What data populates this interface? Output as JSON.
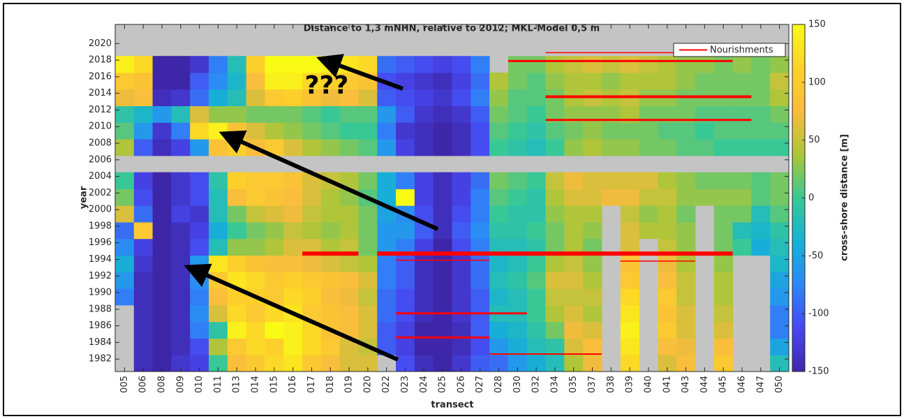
{
  "chart_data": {
    "type": "heatmap",
    "title": "Distance to 1,3 mNHN, relative to 2012; MKL-Model 0,5 m",
    "xlabel": "transect",
    "ylabel": "year",
    "colorbar_label": "cross-shore distance [m]",
    "annotation": "???",
    "categories": [
      "005",
      "006",
      "008",
      "009",
      "010",
      "011",
      "013",
      "014",
      "015",
      "016",
      "017",
      "018",
      "019",
      "020",
      "022",
      "023",
      "024",
      "025",
      "026",
      "027",
      "028",
      "030",
      "032",
      "034",
      "035",
      "037",
      "038",
      "039",
      "040",
      "041",
      "043",
      "044",
      "045",
      "046",
      "047",
      "050"
    ],
    "ybins": [
      1980.5,
      1982.5,
      1984.5,
      1986.5,
      1988.5,
      1990.5,
      1992.5,
      1994.5,
      1996.5,
      1998.5,
      2000.5,
      2002.5,
      2004.5,
      2006.5,
      2008.5,
      2010.5,
      2012.5,
      2014.5,
      2016.5,
      2018.5,
      2020.5
    ],
    "values": [
      [
        null,
        null,
        null,
        null,
        -80,
        -60,
        -40,
        -70,
        -90,
        60,
        20,
        0,
        null,
        40,
        10,
        -10,
        70,
        100,
        140,
        null
      ],
      [
        -140,
        -140,
        -140,
        -140,
        -140,
        -140,
        -130,
        -120,
        100,
        -90,
        -110,
        -120,
        null,
        -100,
        -60,
        -30,
        80,
        90,
        120,
        null
      ],
      [
        -150,
        -150,
        -150,
        -150,
        -150,
        -150,
        -150,
        -150,
        -150,
        -150,
        -150,
        -150,
        null,
        -140,
        -130,
        -60,
        -140,
        -150,
        -150,
        null
      ],
      [
        -130,
        -140,
        -140,
        -140,
        -140,
        -140,
        -140,
        -140,
        -140,
        -120,
        -130,
        -130,
        null,
        -120,
        -80,
        -20,
        -130,
        -150,
        -150,
        null
      ],
      [
        -120,
        -110,
        -80,
        -70,
        -80,
        -70,
        -60,
        -110,
        -120,
        -130,
        -110,
        -110,
        null,
        -60,
        120,
        60,
        -90,
        -100,
        -130,
        null
      ],
      [
        0,
        40,
        -10,
        60,
        80,
        100,
        130,
        -20,
        -40,
        -20,
        -20,
        -10,
        null,
        90,
        140,
        30,
        -40,
        -70,
        -80,
        null
      ],
      [
        80,
        100,
        140,
        120,
        110,
        130,
        110,
        30,
        0,
        20,
        80,
        110,
        null,
        110,
        90,
        30,
        -20,
        -30,
        -20,
        null
      ],
      [
        100,
        120,
        120,
        100,
        110,
        120,
        90,
        30,
        20,
        50,
        100,
        100,
        null,
        80,
        60,
        20,
        60,
        80,
        110,
        null
      ],
      [
        120,
        110,
        150,
        120,
        100,
        100,
        80,
        40,
        30,
        60,
        90,
        100,
        null,
        100,
        40,
        20,
        100,
        140,
        150,
        null
      ],
      [
        130,
        140,
        140,
        130,
        120,
        110,
        80,
        60,
        50,
        70,
        80,
        90,
        null,
        60,
        30,
        20,
        110,
        140,
        150,
        null
      ],
      [
        100,
        120,
        120,
        100,
        110,
        100,
        70,
        60,
        40,
        50,
        60,
        60,
        null,
        40,
        20,
        10,
        90,
        120,
        150,
        null
      ],
      [
        80,
        100,
        90,
        90,
        80,
        90,
        60,
        40,
        30,
        40,
        40,
        50,
        null,
        30,
        10,
        0,
        70,
        110,
        140,
        null
      ],
      [
        60,
        60,
        80,
        80,
        70,
        80,
        50,
        50,
        40,
        40,
        30,
        40,
        null,
        20,
        0,
        10,
        80,
        100,
        130,
        null
      ],
      [
        60,
        50,
        60,
        60,
        50,
        60,
        40,
        20,
        20,
        20,
        10,
        20,
        null,
        10,
        0,
        10,
        60,
        90,
        120,
        null
      ],
      [
        null,
        -100,
        -100,
        -90,
        -90,
        -80,
        -80,
        -60,
        -60,
        -50,
        -40,
        -40,
        null,
        -60,
        -80,
        -60,
        -100,
        -110,
        -90,
        null
      ],
      [
        -110,
        -120,
        -120,
        -110,
        -110,
        -100,
        -100,
        -80,
        -60,
        -70,
        150,
        -80,
        null,
        -120,
        -130,
        -100,
        -110,
        -120,
        -100,
        null
      ],
      [
        -140,
        -150,
        -150,
        -140,
        -140,
        -140,
        -140,
        -120,
        -100,
        -110,
        -120,
        -120,
        null,
        -140,
        -140,
        -130,
        -120,
        -130,
        -110,
        null
      ],
      [
        -150,
        -150,
        -150,
        -150,
        -150,
        -150,
        -150,
        -150,
        -140,
        -140,
        -140,
        -140,
        null,
        -150,
        -150,
        -140,
        -130,
        -140,
        -120,
        null
      ],
      [
        -130,
        -140,
        -140,
        -130,
        -130,
        -130,
        -130,
        -110,
        -100,
        -110,
        -120,
        -120,
        null,
        -140,
        -140,
        -130,
        -110,
        -120,
        -110,
        null
      ],
      [
        -100,
        -110,
        -100,
        -100,
        -100,
        -90,
        -90,
        -80,
        -70,
        -80,
        -80,
        -90,
        null,
        -110,
        -110,
        -100,
        -80,
        -90,
        -80,
        null
      ],
      [
        -90,
        -60,
        -40,
        -20,
        -30,
        -20,
        -30,
        -20,
        -10,
        0,
        10,
        20,
        null,
        0,
        10,
        20,
        30,
        40,
        null,
        null
      ],
      [
        -60,
        -40,
        -30,
        -20,
        -20,
        -10,
        -20,
        -20,
        -10,
        -10,
        0,
        10,
        null,
        -10,
        0,
        10,
        10,
        20,
        20,
        null
      ],
      [
        -40,
        -20,
        -10,
        0,
        0,
        10,
        0,
        -10,
        0,
        -10,
        -10,
        0,
        null,
        -20,
        -10,
        0,
        10,
        10,
        20,
        null
      ],
      [
        -20,
        -10,
        20,
        40,
        50,
        60,
        40,
        20,
        20,
        30,
        40,
        50,
        null,
        0,
        10,
        20,
        20,
        30,
        40,
        null
      ],
      [
        40,
        60,
        70,
        60,
        50,
        60,
        50,
        40,
        40,
        40,
        60,
        70,
        null,
        30,
        20,
        30,
        40,
        40,
        50,
        null
      ],
      [
        70,
        80,
        60,
        40,
        50,
        40,
        30,
        20,
        30,
        40,
        60,
        60,
        null,
        40,
        30,
        30,
        50,
        40,
        60,
        null
      ],
      [
        null,
        null,
        null,
        null,
        null,
        null,
        null,
        null,
        null,
        null,
        70,
        60,
        null,
        30,
        20,
        30,
        40,
        30,
        50,
        null
      ],
      [
        120,
        130,
        140,
        130,
        120,
        100,
        90,
        60,
        60,
        50,
        70,
        60,
        null,
        30,
        20,
        40,
        50,
        40,
        60,
        null
      ],
      [
        null,
        null,
        null,
        null,
        null,
        null,
        null,
        null,
        40,
        30,
        50,
        60,
        null,
        20,
        20,
        20,
        30,
        40,
        50,
        null
      ],
      [
        60,
        80,
        100,
        90,
        100,
        80,
        70,
        50,
        40,
        40,
        50,
        40,
        null,
        20,
        10,
        20,
        30,
        40,
        40,
        null
      ],
      [
        80,
        70,
        60,
        60,
        50,
        50,
        40,
        30,
        30,
        20,
        30,
        30,
        null,
        10,
        10,
        20,
        20,
        30,
        30,
        null
      ],
      [
        null,
        null,
        null,
        null,
        null,
        null,
        null,
        null,
        null,
        null,
        30,
        20,
        null,
        10,
        0,
        10,
        20,
        20,
        30,
        null
      ],
      [
        100,
        80,
        60,
        50,
        40,
        40,
        30,
        20,
        20,
        20,
        30,
        20,
        null,
        0,
        10,
        10,
        20,
        20,
        20,
        null
      ],
      [
        null,
        null,
        null,
        null,
        null,
        null,
        null,
        0,
        -20,
        20,
        30,
        20,
        null,
        0,
        10,
        10,
        20,
        20,
        30,
        null
      ],
      [
        null,
        null,
        null,
        null,
        null,
        null,
        null,
        -40,
        -30,
        -20,
        10,
        10,
        null,
        0,
        10,
        10,
        20,
        20,
        20,
        null
      ],
      [
        -20,
        -50,
        -80,
        -80,
        -60,
        -50,
        -30,
        -20,
        -10,
        10,
        20,
        20,
        null,
        0,
        10,
        20,
        40,
        50,
        30,
        null
      ]
    ],
    "ylim": [
      1980.5,
      2022.3
    ],
    "yticks": [
      1982,
      1984,
      1986,
      1988,
      1990,
      1992,
      1994,
      1996,
      1998,
      2000,
      2002,
      2004,
      2006,
      2008,
      2010,
      2012,
      2014,
      2016,
      2018,
      2020
    ],
    "clim": [
      -150,
      150
    ],
    "cticks": [
      -150,
      -100,
      -50,
      0,
      50,
      100,
      150
    ],
    "colormap": [
      "#3e26a8",
      "#4748f0",
      "#2e87f7",
      "#16b1d6",
      "#38c896",
      "#abc639",
      "#f9bb3e",
      "#fcd02a",
      "#f9fb15"
    ],
    "missing_color": "#c4c4c4",
    "series": [
      {
        "name": "Nourishments",
        "color": "#ff0000",
        "segments": [
          {
            "year": 1994.7,
            "from": "017",
            "to": "019",
            "linewidth": 6
          },
          {
            "year": 1994.7,
            "from": "022",
            "to": "045",
            "linewidth": 6
          },
          {
            "year": 1993.9,
            "from": "023",
            "to": "027",
            "linewidth": 1.5
          },
          {
            "year": 1993.8,
            "from": "039",
            "to": "043",
            "linewidth": 1.5
          },
          {
            "year": 1987.5,
            "from": "023",
            "to": "030",
            "linewidth": 3
          },
          {
            "year": 1984.6,
            "from": "023",
            "to": "027",
            "linewidth": 3
          },
          {
            "year": 1982.6,
            "from": "028",
            "to": "037",
            "linewidth": 2
          },
          {
            "year": 2010.8,
            "from": "034",
            "to": "046",
            "linewidth": 3
          },
          {
            "year": 2013.6,
            "from": "034",
            "to": "046",
            "linewidth": 4
          },
          {
            "year": 2017.9,
            "from": "030",
            "to": "045",
            "linewidth": 3
          },
          {
            "year": 2018.9,
            "from": "034",
            "to": "045",
            "linewidth": 1.5
          }
        ]
      }
    ],
    "legend": "northeast"
  }
}
